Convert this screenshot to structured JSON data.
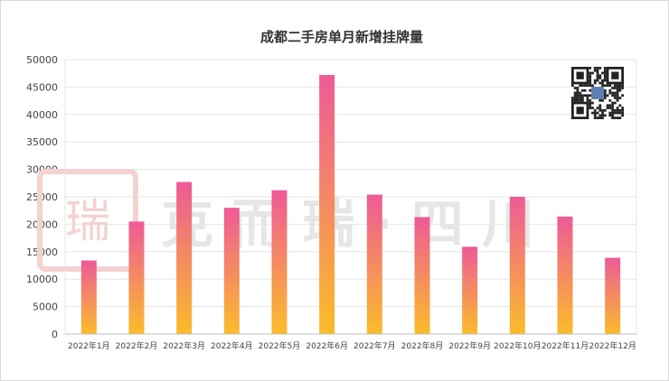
{
  "colors": {
    "bar_top": "#ee5a98",
    "bar_bottom": "#fbbc2a",
    "gridline": "#e6e6e6",
    "axis": "#bfbfbf",
    "watermark_seal": "#f3d2d2",
    "watermark_text": "#e6e6e6"
  },
  "watermark": {
    "brand_text": "克 而 瑞 · 四 川",
    "seal_text": "瑞"
  },
  "qr_code": {
    "icon": "qr-code-icon"
  },
  "chart_data": {
    "type": "bar",
    "title": "成都二手房单月新增挂牌量",
    "xlabel": "",
    "ylabel": "",
    "categories": [
      "2022年1月",
      "2022年2月",
      "2022年3月",
      "2022年4月",
      "2022年5月",
      "2022年6月",
      "2022年7月",
      "2022年8月",
      "2022年9月",
      "2022年10月",
      "2022年11月",
      "2022年12月"
    ],
    "values": [
      13400,
      20500,
      27700,
      23000,
      26200,
      47200,
      25400,
      21300,
      15900,
      25000,
      21400,
      13900
    ],
    "ylim": [
      0,
      50000
    ],
    "yticks": [
      "0",
      "5000",
      "10000",
      "15000",
      "20000",
      "25000",
      "30000",
      "35000",
      "40000",
      "45000",
      "50000"
    ],
    "grid": true,
    "legend": "none"
  }
}
